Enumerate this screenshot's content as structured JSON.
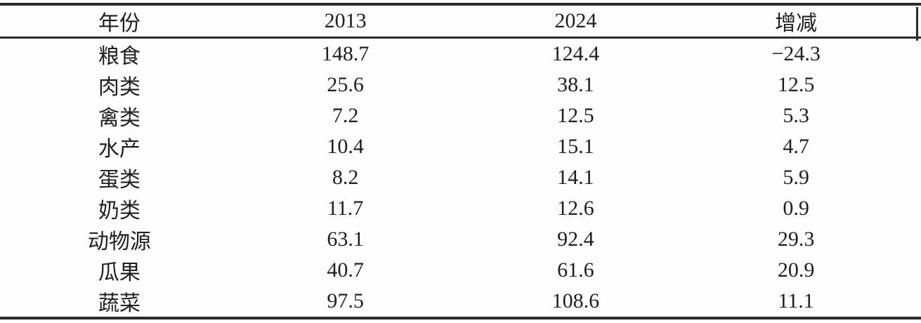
{
  "table": {
    "columns": [
      "年份",
      "2013",
      "2024",
      "增减"
    ],
    "rows": [
      [
        "粮食",
        "148.7",
        "124.4",
        "−24.3"
      ],
      [
        "肉类",
        "25.6",
        "38.1",
        "12.5"
      ],
      [
        "禽类",
        "7.2",
        "12.5",
        "5.3"
      ],
      [
        "水产",
        "10.4",
        "15.1",
        "4.7"
      ],
      [
        "蛋类",
        "8.2",
        "14.1",
        "5.9"
      ],
      [
        "奶类",
        "11.7",
        "12.6",
        "0.9"
      ],
      [
        "动物源",
        "63.1",
        "92.4",
        "29.3"
      ],
      [
        "瓜果",
        "40.7",
        "61.6",
        "20.9"
      ],
      [
        "蔬菜",
        "97.5",
        "108.6",
        "11.1"
      ]
    ]
  },
  "colors": {
    "text": "#1f1f1f",
    "rule": "#2c2c2c",
    "background": "#fdfdfd"
  }
}
